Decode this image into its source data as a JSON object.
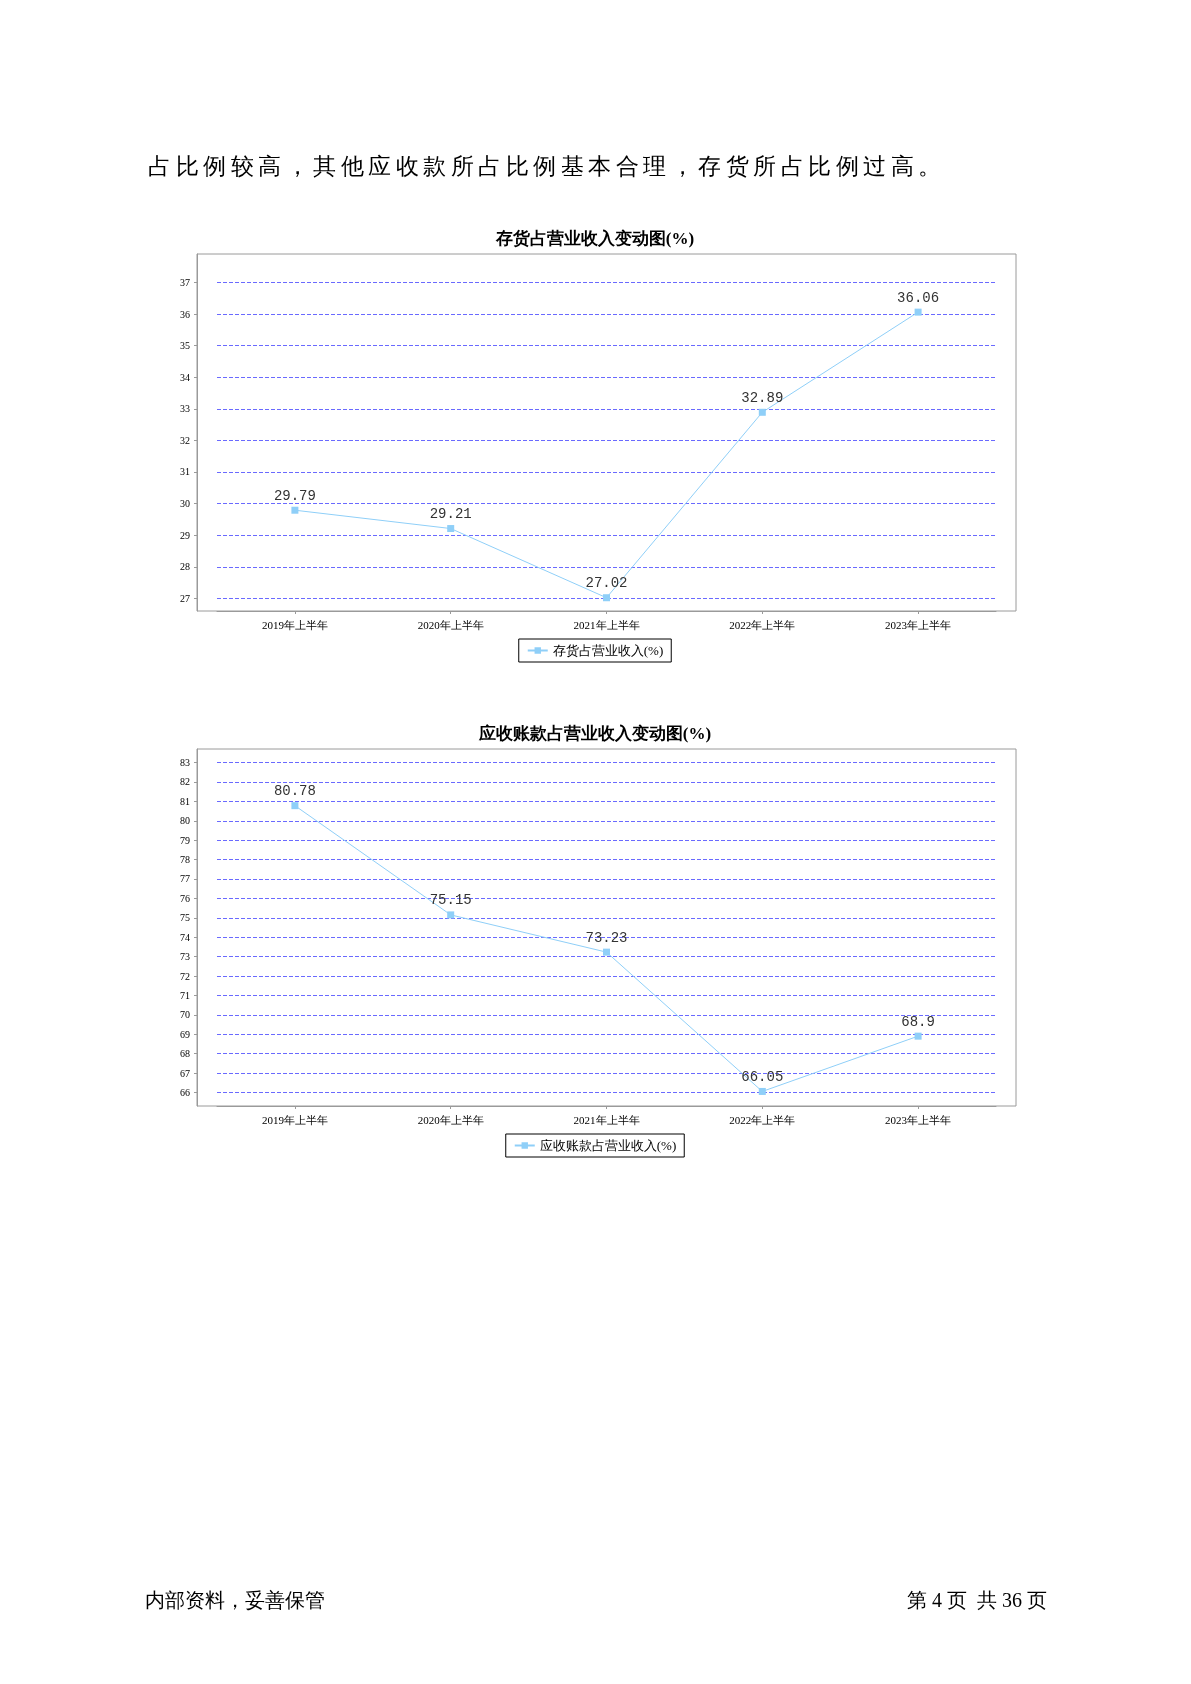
{
  "chart_data": [
    {
      "type": "line",
      "title": "存货占营业收入变动图(%)",
      "categories": [
        "2019年上半年",
        "2020年上半年",
        "2021年上半年",
        "2022年上半年",
        "2023年上半年"
      ],
      "series": [
        {
          "name": "存货占营业收入(%)",
          "color": "#8fcff8",
          "values": [
            29.79,
            29.21,
            27.02,
            32.89,
            36.06
          ]
        }
      ],
      "ylim": [
        26.6,
        37.9
      ],
      "yticks": [
        27,
        28,
        29,
        30,
        31,
        32,
        33,
        34,
        35,
        36,
        37
      ],
      "grid": "y",
      "legend": "bottom",
      "marker": "square",
      "line_style": "solid",
      "data_labels": true,
      "annotations": [
        "占比例较高，其他应收款所占比例基本合理，存货所占比例过高。"
      ]
    },
    {
      "type": "line",
      "title": "应收账款占营业收入变动图(%)",
      "categories": [
        "2019年上半年",
        "2020年上半年",
        "2021年上半年",
        "2022年上半年",
        "2023年上半年"
      ],
      "series": [
        {
          "name": "应收账款占营业收入(%)",
          "color": "#8fcff8",
          "values": [
            80.78,
            75.15,
            73.23,
            66.05,
            68.9
          ]
        }
      ],
      "ylim": [
        65.3,
        83.7
      ],
      "yticks": [
        66,
        67,
        68,
        69,
        70,
        71,
        72,
        73,
        74,
        75,
        76,
        77,
        78,
        79,
        80,
        81,
        82,
        83
      ],
      "grid": "y",
      "legend": "bottom",
      "marker": "square",
      "line_style": "solid",
      "data_labels": true,
      "annotations": [
        "内部资料，妥善保管",
        "第 4 页  共 36 页"
      ]
    }
  ]
}
